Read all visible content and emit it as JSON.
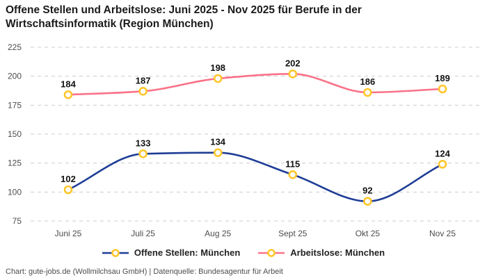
{
  "header": {
    "title_lines": [
      "Offene Stellen und Arbeitslose: Juni 2025 - Nov 2025 für Berufe in der",
      "Wirtschaftsinformatik (Region München)"
    ]
  },
  "chart_data": {
    "type": "line",
    "title": "Offene Stellen und Arbeitslose: Juni 2025 - Nov 2025 für Berufe in der Wirtschaftsinformatik (Region München)",
    "categories": [
      "Juni 25",
      "Juli 25",
      "Aug 25",
      "Sept 25",
      "Okt 25",
      "Nov 25"
    ],
    "series": [
      {
        "name": "Offene Stellen: München",
        "color": "#1e3d96",
        "values": [
          102,
          133,
          134,
          115,
          92,
          124
        ]
      },
      {
        "name": "Arbeitslose: München",
        "color": "#fa7288",
        "values": [
          184,
          187,
          198,
          202,
          186,
          189
        ]
      }
    ],
    "ylim": [
      75,
      225
    ],
    "yticks": [
      75,
      100,
      125,
      150,
      175,
      200,
      225
    ],
    "grid": "horizontal-dashed",
    "grid_color": "#cccccc",
    "marker": {
      "shape": "ring-circle",
      "stroke": "#ffc62b",
      "fill": "#ffffff",
      "radius": 5
    },
    "data_labels": true,
    "curve": "monotone",
    "legend_position": "bottom-center"
  },
  "footer": {
    "text": "Chart: gute-jobs.de (Wollmilchsau GmbH) | Datenquelle: Bundesagentur für Arbeit"
  }
}
